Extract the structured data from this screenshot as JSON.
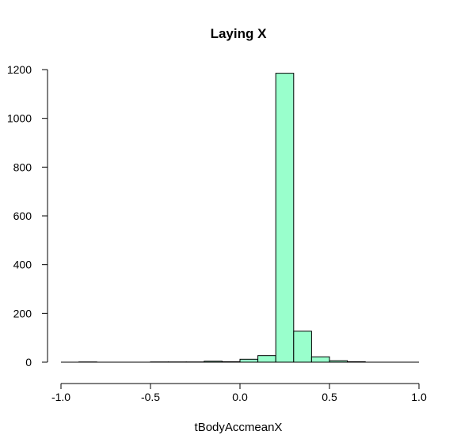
{
  "chart_data": {
    "type": "bar",
    "title": "Laying X",
    "xlabel": "tBodyAccmeanX",
    "ylabel": "",
    "bar_color": "#99ffcc",
    "bin_width": 0.1,
    "bins": [
      {
        "x0": -0.9,
        "x1": -0.8,
        "count": 1
      },
      {
        "x0": -0.8,
        "x1": -0.7,
        "count": 0
      },
      {
        "x0": -0.7,
        "x1": -0.6,
        "count": 0
      },
      {
        "x0": -0.6,
        "x1": -0.5,
        "count": 0
      },
      {
        "x0": -0.5,
        "x1": -0.4,
        "count": 1
      },
      {
        "x0": -0.4,
        "x1": -0.3,
        "count": 1
      },
      {
        "x0": -0.3,
        "x1": -0.2,
        "count": 1
      },
      {
        "x0": -0.2,
        "x1": -0.1,
        "count": 4
      },
      {
        "x0": -0.1,
        "x1": 0.0,
        "count": 2
      },
      {
        "x0": 0.0,
        "x1": 0.1,
        "count": 12
      },
      {
        "x0": 0.1,
        "x1": 0.2,
        "count": 27
      },
      {
        "x0": 0.2,
        "x1": 0.3,
        "count": 1185
      },
      {
        "x0": 0.3,
        "x1": 0.4,
        "count": 127
      },
      {
        "x0": 0.4,
        "x1": 0.5,
        "count": 22
      },
      {
        "x0": 0.5,
        "x1": 0.6,
        "count": 6
      },
      {
        "x0": 0.6,
        "x1": 0.7,
        "count": 2
      },
      {
        "x0": 0.7,
        "x1": 0.8,
        "count": 0
      },
      {
        "x0": 0.8,
        "x1": 0.9,
        "count": 0
      },
      {
        "x0": 0.9,
        "x1": 1.0,
        "count": 0
      }
    ],
    "xlim": [
      -1.0,
      1.0
    ],
    "ylim": [
      0,
      1200
    ],
    "x_ticks": [
      -1.0,
      -0.5,
      0.0,
      0.5,
      1.0
    ],
    "x_tick_labels": [
      "-1.0",
      "-0.5",
      "0.0",
      "0.5",
      "1.0"
    ],
    "y_ticks": [
      0,
      200,
      400,
      600,
      800,
      1000,
      1200
    ],
    "y_tick_labels": [
      "0",
      "200",
      "400",
      "600",
      "800",
      "1000",
      "1200"
    ],
    "grid": false
  }
}
